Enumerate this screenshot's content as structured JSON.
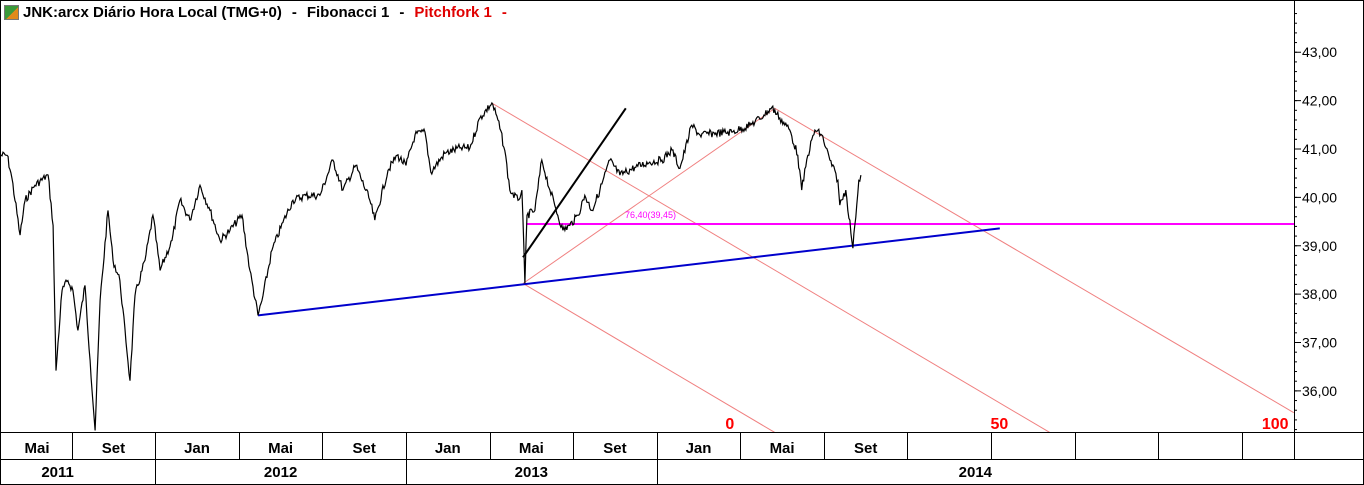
{
  "header": {
    "symbol_title": "JNK:arcx Diário Hora Local (TMG+0)",
    "sep1": "-",
    "study1": "Fibonacci 1",
    "sep2": "-",
    "study2": "Pitchfork 1",
    "sep3": "-",
    "icon": "app-logo-icon"
  },
  "chart_data": {
    "type": "line",
    "title": "JNK:arcx Diário Hora Local (TMG+0)",
    "x_unit": "months since Jan 2011",
    "xlim": [
      4.57,
      66.5
    ],
    "ylim": [
      35.15,
      44.08
    ],
    "yticks": [
      36,
      37,
      38,
      39,
      40,
      41,
      42,
      43
    ],
    "ytick_labels": [
      "36,00",
      "37,00",
      "38,00",
      "39,00",
      "40,00",
      "41,00",
      "42,00",
      "43,00"
    ],
    "month_labels": [
      {
        "m": 4,
        "label": "Mai"
      },
      {
        "m": 8,
        "label": "Set"
      },
      {
        "m": 12,
        "label": "Jan"
      },
      {
        "m": 16,
        "label": "Mai"
      },
      {
        "m": 20,
        "label": "Set"
      },
      {
        "m": 24,
        "label": "Jan"
      },
      {
        "m": 28,
        "label": "Mai"
      },
      {
        "m": 32,
        "label": "Set"
      },
      {
        "m": 36,
        "label": "Jan"
      },
      {
        "m": 40,
        "label": "Mai"
      },
      {
        "m": 44,
        "label": "Set"
      }
    ],
    "month_grid": [
      8,
      12,
      16,
      20,
      24,
      28,
      32,
      36,
      40,
      44,
      48,
      52,
      56,
      60,
      64
    ],
    "year_labels": [
      {
        "start": 4.57,
        "end": 12,
        "label": "2011"
      },
      {
        "start": 12,
        "end": 24,
        "label": "2012"
      },
      {
        "start": 24,
        "end": 36,
        "label": "2013"
      },
      {
        "start": 36,
        "end": 66.5,
        "label": "2014"
      }
    ],
    "series": [
      {
        "name": "JNK",
        "color": "#000000",
        "points": [
          [
            4.57,
            40.87
          ],
          [
            4.91,
            40.87
          ],
          [
            5.14,
            40.4
          ],
          [
            5.53,
            39.22
          ],
          [
            5.77,
            39.94
          ],
          [
            6.24,
            40.25
          ],
          [
            6.87,
            40.46
          ],
          [
            7.11,
            39.42
          ],
          [
            7.25,
            36.42
          ],
          [
            7.54,
            38.08
          ],
          [
            7.82,
            38.28
          ],
          [
            8.06,
            38.08
          ],
          [
            8.3,
            37.25
          ],
          [
            8.64,
            38.18
          ],
          [
            8.88,
            36.63
          ],
          [
            9.12,
            35.18
          ],
          [
            9.36,
            37.87
          ],
          [
            9.74,
            39.73
          ],
          [
            9.98,
            38.7
          ],
          [
            10.31,
            38.28
          ],
          [
            10.79,
            36.21
          ],
          [
            11.03,
            37.97
          ],
          [
            11.51,
            38.7
          ],
          [
            11.89,
            39.63
          ],
          [
            12.23,
            38.49
          ],
          [
            12.8,
            39.11
          ],
          [
            13.18,
            39.94
          ],
          [
            13.66,
            39.53
          ],
          [
            14.14,
            40.25
          ],
          [
            14.62,
            39.73
          ],
          [
            15.1,
            39.11
          ],
          [
            15.58,
            39.32
          ],
          [
            16.15,
            39.63
          ],
          [
            16.53,
            38.49
          ],
          [
            16.92,
            37.56
          ],
          [
            17.11,
            37.87
          ],
          [
            17.59,
            38.91
          ],
          [
            18.11,
            39.48
          ],
          [
            18.59,
            39.94
          ],
          [
            19.21,
            40.04
          ],
          [
            19.88,
            40.04
          ],
          [
            20.5,
            40.77
          ],
          [
            20.98,
            40.15
          ],
          [
            21.6,
            40.66
          ],
          [
            22.27,
            39.94
          ],
          [
            22.51,
            39.53
          ],
          [
            23.14,
            40.56
          ],
          [
            23.57,
            40.87
          ],
          [
            24.0,
            40.66
          ],
          [
            24.43,
            41.29
          ],
          [
            24.91,
            41.35
          ],
          [
            25.19,
            40.52
          ],
          [
            25.86,
            40.91
          ],
          [
            26.58,
            41.02
          ],
          [
            27.06,
            41.02
          ],
          [
            27.54,
            41.64
          ],
          [
            28.11,
            41.95
          ],
          [
            28.4,
            41.6
          ],
          [
            28.73,
            40.97
          ],
          [
            28.97,
            40.15
          ],
          [
            29.36,
            39.94
          ],
          [
            29.55,
            40.15
          ],
          [
            29.69,
            38.22
          ],
          [
            29.79,
            39.63
          ],
          [
            30.17,
            39.73
          ],
          [
            30.5,
            40.77
          ],
          [
            30.89,
            40.15
          ],
          [
            31.17,
            39.77
          ],
          [
            31.51,
            39.32
          ],
          [
            31.84,
            39.42
          ],
          [
            32.23,
            39.63
          ],
          [
            32.56,
            40.04
          ],
          [
            32.9,
            39.73
          ],
          [
            33.28,
            40.15
          ],
          [
            33.76,
            40.77
          ],
          [
            34.24,
            40.46
          ],
          [
            34.95,
            40.62
          ],
          [
            35.67,
            40.73
          ],
          [
            36.25,
            40.77
          ],
          [
            36.73,
            40.98
          ],
          [
            37.11,
            40.6
          ],
          [
            37.68,
            41.49
          ],
          [
            38.07,
            41.29
          ],
          [
            38.83,
            41.33
          ],
          [
            39.6,
            41.35
          ],
          [
            40.46,
            41.49
          ],
          [
            41.13,
            41.7
          ],
          [
            41.51,
            41.86
          ],
          [
            41.89,
            41.64
          ],
          [
            42.37,
            41.39
          ],
          [
            42.75,
            40.87
          ],
          [
            42.94,
            40.15
          ],
          [
            43.23,
            40.87
          ],
          [
            43.57,
            41.39
          ],
          [
            43.9,
            41.29
          ],
          [
            44.29,
            40.77
          ],
          [
            44.67,
            40.35
          ],
          [
            44.76,
            39.84
          ],
          [
            45.05,
            40.15
          ],
          [
            45.39,
            38.95
          ],
          [
            45.48,
            39.42
          ],
          [
            45.67,
            40.35
          ],
          [
            45.77,
            40.46
          ]
        ]
      }
    ],
    "drawings": {
      "trendline_blue": {
        "from": [
          16.92,
          37.56
        ],
        "to": [
          52.42,
          39.36
        ],
        "color": "#0000cc"
      },
      "trendline_black": {
        "from": [
          29.6,
          38.76
        ],
        "to": [
          34.52,
          41.84
        ],
        "color": "#000000"
      },
      "fibonacci_level": {
        "price": 39.45,
        "from": 29.79,
        "to": 66.5,
        "label": "76,40(39,45)",
        "color": "#ff00ff"
      },
      "pitchfork": {
        "color": "#f08080",
        "lines": [
          {
            "from": [
              28.11,
              41.95
            ],
            "to": [
              54.81,
              35.14
            ]
          },
          {
            "from": [
              29.6,
              38.22
            ],
            "to": [
              41.65,
              35.14
            ]
          },
          {
            "from": [
              41.65,
              41.84
            ],
            "to": [
              66.49,
              35.55
            ]
          },
          {
            "from": [
              29.6,
              38.22
            ],
            "to": [
              41.65,
              41.84
            ]
          }
        ],
        "labels": [
          {
            "m": 39.5,
            "text": "0"
          },
          {
            "m": 52.4,
            "text": "50"
          },
          {
            "m": 65.6,
            "text": "100"
          }
        ],
        "label_color": "#ff0000"
      }
    }
  }
}
